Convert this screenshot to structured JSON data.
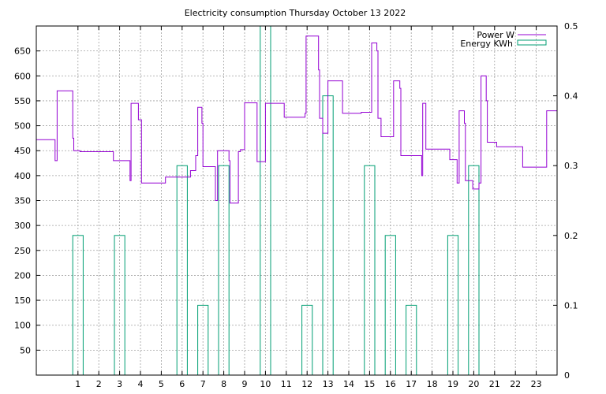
{
  "chart_data": {
    "type": "line",
    "title": "Electricity consumption Thursday October 13 2022",
    "xlabel": "",
    "ylabel": "",
    "y2label": "",
    "xlim": [
      -1,
      24
    ],
    "ylim": [
      0,
      700
    ],
    "y2lim": [
      0,
      0.5
    ],
    "grid": true,
    "legend_position": "top-right",
    "x_ticks": [
      1,
      2,
      3,
      4,
      5,
      6,
      7,
      8,
      9,
      10,
      11,
      12,
      13,
      14,
      15,
      16,
      17,
      18,
      19,
      20,
      21,
      22,
      23
    ],
    "y_ticks": [
      50,
      100,
      150,
      200,
      250,
      300,
      350,
      400,
      450,
      500,
      550,
      600,
      650
    ],
    "y2_ticks": [
      "0",
      "0.1",
      "0.2",
      "0.3",
      "0.4",
      "0.5"
    ],
    "series": [
      {
        "name": "Power W",
        "color": "#9400d3",
        "style": "steps",
        "axis": "y1",
        "points": [
          [
            -1,
            472
          ],
          [
            -0.1,
            472
          ],
          [
            -0.1,
            430
          ],
          [
            0.0,
            430
          ],
          [
            0.0,
            570
          ],
          [
            0.75,
            570
          ],
          [
            0.75,
            475
          ],
          [
            0.8,
            475
          ],
          [
            0.8,
            450
          ],
          [
            1.1,
            450
          ],
          [
            1.1,
            448
          ],
          [
            2.7,
            448
          ],
          [
            2.7,
            430
          ],
          [
            3.5,
            430
          ],
          [
            3.5,
            390
          ],
          [
            3.55,
            390
          ],
          [
            3.55,
            545
          ],
          [
            3.9,
            545
          ],
          [
            3.9,
            512
          ],
          [
            4.05,
            512
          ],
          [
            4.05,
            385
          ],
          [
            5.2,
            385
          ],
          [
            5.2,
            397
          ],
          [
            6.4,
            397
          ],
          [
            6.4,
            410
          ],
          [
            6.65,
            410
          ],
          [
            6.65,
            440
          ],
          [
            6.75,
            440
          ],
          [
            6.75,
            537
          ],
          [
            6.95,
            537
          ],
          [
            6.95,
            505
          ],
          [
            7.0,
            505
          ],
          [
            7.0,
            418
          ],
          [
            7.6,
            418
          ],
          [
            7.6,
            350
          ],
          [
            7.7,
            350
          ],
          [
            7.7,
            450
          ],
          [
            8.25,
            450
          ],
          [
            8.25,
            430
          ],
          [
            8.3,
            430
          ],
          [
            8.3,
            345
          ],
          [
            8.7,
            345
          ],
          [
            8.7,
            448
          ],
          [
            8.8,
            448
          ],
          [
            8.8,
            452
          ],
          [
            9.0,
            452
          ],
          [
            9.0,
            546
          ],
          [
            9.6,
            546
          ],
          [
            9.6,
            428
          ],
          [
            10.0,
            428
          ],
          [
            10.0,
            545
          ],
          [
            10.9,
            545
          ],
          [
            10.9,
            517
          ],
          [
            11.9,
            517
          ],
          [
            11.9,
            525
          ],
          [
            11.95,
            525
          ],
          [
            11.95,
            680
          ],
          [
            12.55,
            680
          ],
          [
            12.55,
            612
          ],
          [
            12.6,
            612
          ],
          [
            12.6,
            515
          ],
          [
            12.75,
            515
          ],
          [
            12.75,
            485
          ],
          [
            13.0,
            485
          ],
          [
            13.0,
            590
          ],
          [
            13.7,
            590
          ],
          [
            13.7,
            525
          ],
          [
            14.6,
            525
          ],
          [
            14.6,
            527
          ],
          [
            15.1,
            527
          ],
          [
            15.1,
            666
          ],
          [
            15.35,
            666
          ],
          [
            15.35,
            650
          ],
          [
            15.4,
            650
          ],
          [
            15.4,
            515
          ],
          [
            15.55,
            515
          ],
          [
            15.55,
            478
          ],
          [
            16.15,
            478
          ],
          [
            16.15,
            590
          ],
          [
            16.45,
            590
          ],
          [
            16.45,
            575
          ],
          [
            16.5,
            575
          ],
          [
            16.5,
            440
          ],
          [
            17.5,
            440
          ],
          [
            17.5,
            400
          ],
          [
            17.55,
            400
          ],
          [
            17.55,
            545
          ],
          [
            17.7,
            545
          ],
          [
            17.7,
            453
          ],
          [
            18.85,
            453
          ],
          [
            18.85,
            432
          ],
          [
            19.2,
            432
          ],
          [
            19.2,
            385
          ],
          [
            19.3,
            385
          ],
          [
            19.3,
            530
          ],
          [
            19.55,
            530
          ],
          [
            19.55,
            505
          ],
          [
            19.6,
            505
          ],
          [
            19.6,
            390
          ],
          [
            19.95,
            390
          ],
          [
            19.95,
            373
          ],
          [
            20.25,
            373
          ],
          [
            20.25,
            385
          ],
          [
            20.35,
            385
          ],
          [
            20.35,
            600
          ],
          [
            20.6,
            600
          ],
          [
            20.6,
            550
          ],
          [
            20.65,
            550
          ],
          [
            20.65,
            467
          ],
          [
            21.1,
            467
          ],
          [
            21.1,
            458
          ],
          [
            22.35,
            458
          ],
          [
            22.35,
            417
          ],
          [
            23.5,
            417
          ],
          [
            23.5,
            530
          ],
          [
            24.0,
            530
          ]
        ]
      },
      {
        "name": "Energy KWh",
        "color": "#009e73",
        "style": "impulse-boxes",
        "axis": "y2",
        "box_width": 0.5,
        "centers": [
          1,
          3,
          6,
          7,
          8,
          10,
          12,
          13,
          15,
          16,
          17,
          19,
          20
        ],
        "values": [
          0.2,
          0.2,
          0.3,
          0.1,
          0.3,
          0.5,
          0.1,
          0.4,
          0.3,
          0.2,
          0.1,
          0.2,
          0.3
        ]
      }
    ]
  }
}
